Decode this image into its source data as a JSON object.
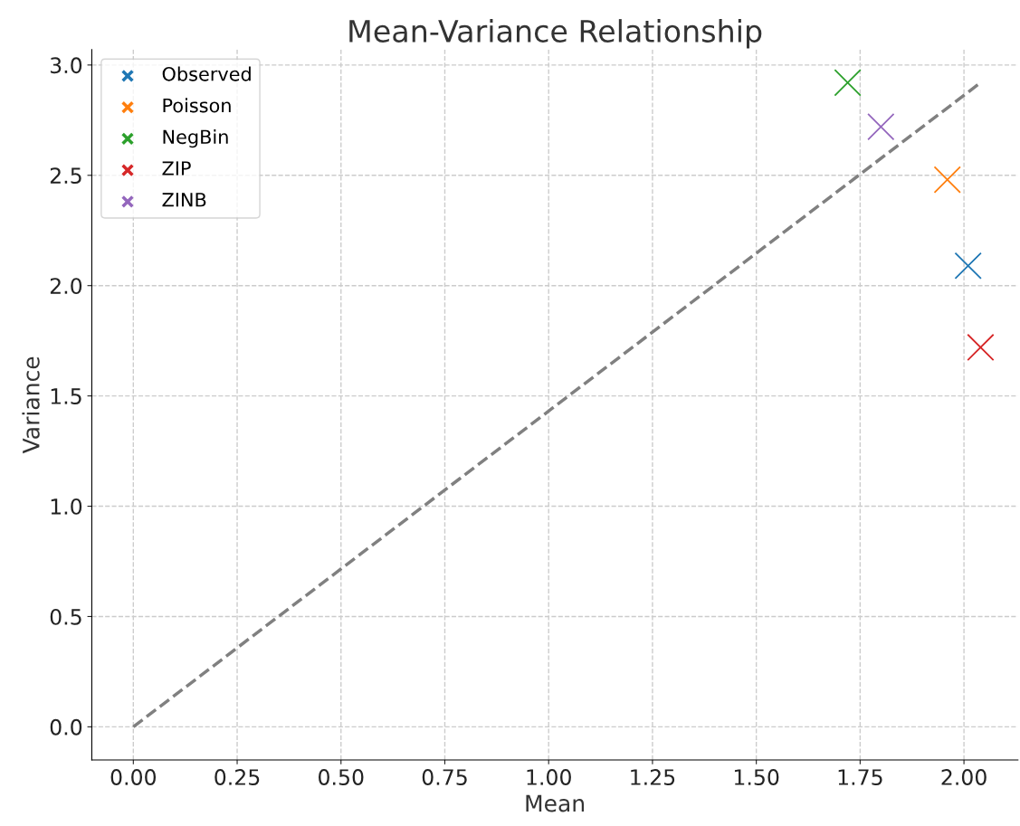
{
  "chart_data": {
    "type": "scatter",
    "title": "Mean-Variance Relationship",
    "xlabel": "Mean",
    "ylabel": "Variance",
    "xlim": [
      -0.1,
      2.13
    ],
    "ylim": [
      -0.15,
      3.07
    ],
    "xticks": [
      {
        "value": 0,
        "label": "0.00"
      },
      0.25,
      {
        "value": 0.5,
        "label": "0.50"
      },
      0.75,
      {
        "value": 1,
        "label": "1.00"
      },
      1.25,
      {
        "value": 1.5,
        "label": "1.50"
      },
      1.75,
      {
        "value": 2,
        "label": "2.00"
      }
    ],
    "yticks": [
      {
        "value": 0,
        "label": "0.0"
      },
      0.5,
      {
        "value": 1,
        "label": "1.0"
      },
      1.5,
      {
        "value": 2,
        "label": "2.0"
      },
      2.5,
      {
        "value": 3,
        "label": "3.0"
      }
    ],
    "grid": true,
    "legend": "top left",
    "marker": "cross",
    "series": [
      {
        "name": "Observed",
        "color": "#1f77b4",
        "x": [
          2.01
        ],
        "values": [
          2.09
        ]
      },
      {
        "name": "Poisson",
        "color": "#ff7f0e",
        "x": [
          1.96
        ],
        "values": [
          2.48
        ]
      },
      {
        "name": "NegBin",
        "color": "#2ca02c",
        "x": [
          1.72
        ],
        "values": [
          2.92
        ]
      },
      {
        "name": "ZIP",
        "color": "#d62728",
        "x": [
          2.04
        ],
        "values": [
          1.72
        ]
      },
      {
        "name": "ZINB",
        "color": "#9467bd",
        "x": [
          1.8
        ],
        "values": [
          2.72
        ]
      },
      {
        "type": "line",
        "color": "#808080",
        "line_style": "dashed",
        "marker": "none",
        "x": [
          0,
          2.04
        ],
        "values": [
          0,
          2.92
        ]
      }
    ]
  }
}
